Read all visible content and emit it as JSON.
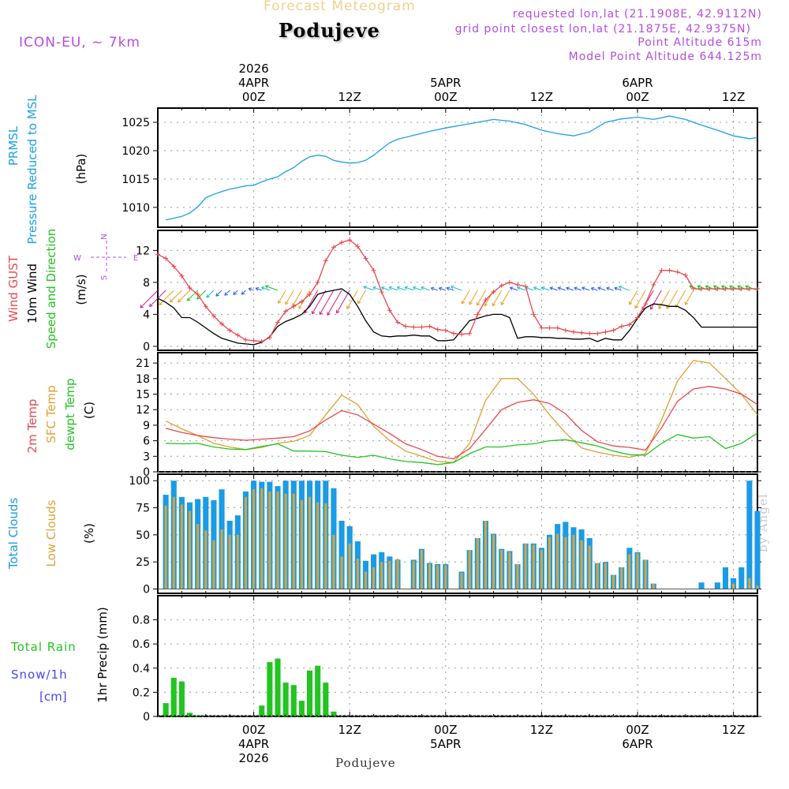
{
  "header": {
    "forecast_title": "Forecast Meteogram",
    "location": "Podujeve",
    "model": "ICON-EU, ~ 7km",
    "requested": "requested lon,lat (21.1908E, 42.9112N)",
    "grid_point": "grid point closest lon,lat (21.1875E, 42.9375N)",
    "point_altitude": "Point Altitude 615m",
    "model_altitude": "Model Point Altitude 644.125m",
    "footer_location": "Podujeve",
    "credit": "by Angel"
  },
  "colors": {
    "pressure": "#1aa0e6",
    "gust": "#e8484e",
    "wind": "#000000",
    "temp2m": "#e8484e",
    "sfc": "#e0a030",
    "dewpt": "#22c422",
    "total_cloud": "#1a9be6",
    "low_cloud": "#d9a53a",
    "rain": "#22c422",
    "snow": "#4848f0",
    "purple": "#b44ce0",
    "grid": "#999999"
  },
  "time_axis": {
    "top_years": [
      "2026"
    ],
    "top_dates": [
      "4APR",
      "5APR",
      "6APR"
    ],
    "top_hours": [
      "00Z",
      "12Z",
      "00Z",
      "12Z",
      "00Z",
      "12Z"
    ],
    "bottom_hours": [
      "00Z",
      "12Z",
      "00Z",
      "12Z",
      "00Z",
      "12Z"
    ],
    "bottom_dates": [
      "4APR",
      "5APR",
      "6APR"
    ],
    "bottom_years": [
      "2026"
    ]
  },
  "chart_data": [
    {
      "type": "line",
      "title": "PRMSL Pressure Reduced to MSL",
      "ylabel": "(hPa)",
      "label_lines": [
        "PRMSL",
        "Pressure Reduced to MSL"
      ],
      "unit": "(hPa)",
      "ylim": [
        1006.5,
        1027.5
      ],
      "yticks": [
        1010,
        1015,
        1020,
        1025
      ],
      "x_hours": [
        -12,
        63
      ],
      "series": [
        {
          "name": "Pressure",
          "x": [
            -11,
            -10,
            -9,
            -8,
            -7,
            -6,
            -5,
            -4,
            -3,
            -2,
            -1,
            0,
            1,
            2,
            3,
            4,
            5,
            6,
            7,
            8,
            9,
            10,
            11,
            12,
            13,
            14,
            15,
            16,
            17,
            18,
            20,
            22,
            24,
            26,
            28,
            30,
            32,
            34,
            36,
            38,
            40,
            42,
            44,
            46,
            48,
            50,
            52,
            54,
            56,
            58,
            60,
            62,
            63
          ],
          "values": [
            1007.8,
            1008.1,
            1008.4,
            1009.0,
            1010.1,
            1011.7,
            1012.3,
            1012.8,
            1013.2,
            1013.5,
            1013.8,
            1013.9,
            1014.5,
            1015.0,
            1015.4,
            1016.3,
            1017.0,
            1018.1,
            1018.9,
            1019.2,
            1019.0,
            1018.3,
            1018.0,
            1017.8,
            1017.9,
            1018.3,
            1019.2,
            1020.3,
            1021.4,
            1022.0,
            1022.7,
            1023.4,
            1024.0,
            1024.5,
            1025.0,
            1025.5,
            1025.2,
            1024.6,
            1023.6,
            1023.0,
            1022.6,
            1023.3,
            1025.0,
            1025.6,
            1025.9,
            1025.5,
            1026.1,
            1025.5,
            1024.5,
            1023.6,
            1022.6,
            1022.1,
            1022.3
          ]
        }
      ]
    },
    {
      "type": "line",
      "title": "Wind GUST / 10m Wind Speed and Direction",
      "ylabel": "(m/s)",
      "label_lines": [
        "Wind GUST",
        "10m Wind",
        "Speed and Direction"
      ],
      "unit": "(m/s)",
      "compass": {
        "n": "N",
        "s": "S",
        "w": "W",
        "e": "E"
      },
      "ylim": [
        -0.5,
        14.5
      ],
      "yticks": [
        0,
        4,
        8,
        12
      ],
      "x_hours": [
        -12,
        63
      ],
      "series": [
        {
          "name": "Wind GUST",
          "x": [
            -12,
            -11,
            -10,
            -9,
            -8,
            -7,
            -6,
            -5,
            -4,
            -3,
            -2,
            -1,
            0,
            1,
            2,
            3,
            4,
            5,
            6,
            7,
            8,
            9,
            10,
            11,
            12,
            13,
            14,
            15,
            16,
            17,
            18,
            19,
            20,
            21,
            22,
            23,
            24,
            25,
            26,
            27,
            28,
            29,
            30,
            31,
            32,
            33,
            34,
            35,
            36,
            37,
            38,
            39,
            40,
            41,
            42,
            43,
            44,
            45,
            46,
            47,
            48,
            49,
            50,
            51,
            52,
            53,
            54,
            55,
            56,
            57,
            58,
            59,
            60,
            61,
            62,
            63
          ],
          "values": [
            11.5,
            11.0,
            10.0,
            8.8,
            7.3,
            6.5,
            5.0,
            3.8,
            2.8,
            2.0,
            1.4,
            0.8,
            0.7,
            0.6,
            1.1,
            3.0,
            4.4,
            5.0,
            5.6,
            6.5,
            8.0,
            10.7,
            12.4,
            13.0,
            13.3,
            12.5,
            11.0,
            9.5,
            6.8,
            4.5,
            3.0,
            2.5,
            2.4,
            2.4,
            2.5,
            2.1,
            2.0,
            1.6,
            1.5,
            1.6,
            4.0,
            5.8,
            6.8,
            7.6,
            8.0,
            7.7,
            7.5,
            4.0,
            2.3,
            2.3,
            2.3,
            2.0,
            1.8,
            1.7,
            1.6,
            1.6,
            1.8,
            2.0,
            2.5,
            2.7,
            3.6,
            5.3,
            7.7,
            9.5,
            9.5,
            9.3,
            8.9,
            7.2,
            7.2,
            7.2,
            7.2,
            7.2,
            7.2,
            7.2,
            7.2,
            7.2
          ]
        },
        {
          "name": "10m Wind",
          "x": [
            -12,
            -11,
            -10,
            -9,
            -8,
            -7,
            -6,
            -5,
            -4,
            -3,
            -2,
            -1,
            0,
            1,
            2,
            3,
            4,
            5,
            6,
            7,
            8,
            9,
            10,
            11,
            12,
            13,
            14,
            15,
            16,
            17,
            18,
            19,
            20,
            21,
            22,
            23,
            24,
            25,
            26,
            27,
            28,
            29,
            30,
            31,
            32,
            33,
            34,
            35,
            36,
            37,
            38,
            39,
            40,
            41,
            42,
            43,
            44,
            45,
            46,
            47,
            48,
            49,
            50,
            51,
            52,
            53,
            54,
            55,
            56,
            57,
            58,
            59,
            60,
            61,
            62,
            63
          ],
          "values": [
            6.0,
            5.5,
            4.8,
            3.6,
            3.6,
            3.0,
            2.3,
            1.6,
            1.0,
            0.7,
            0.4,
            0.3,
            0.2,
            0.5,
            1.2,
            2.5,
            3.1,
            3.5,
            4.0,
            5.0,
            6.5,
            6.8,
            7.0,
            7.2,
            6.5,
            5.0,
            3.2,
            1.8,
            1.3,
            1.2,
            1.3,
            1.3,
            1.4,
            1.3,
            1.3,
            0.7,
            0.7,
            0.8,
            2.0,
            3.2,
            3.5,
            3.8,
            4.0,
            4.0,
            3.6,
            1.0,
            1.2,
            1.2,
            1.1,
            1.1,
            1.0,
            1.0,
            0.9,
            0.9,
            1.0,
            0.6,
            1.0,
            0.8,
            0.8,
            2.0,
            3.5,
            4.8,
            5.3,
            5.2,
            5.0,
            5.0,
            4.5,
            3.6,
            2.4,
            2.4,
            2.4,
            2.4,
            2.4,
            2.4,
            2.4,
            2.4
          ]
        }
      ]
    },
    {
      "type": "line",
      "title": "2m Temp / SFC Temp / dewpt Temp",
      "ylabel": "(C)",
      "label_lines": [
        "2m Temp",
        "SFC Temp",
        "dewpt Temp"
      ],
      "unit": "(C)",
      "ylim": [
        0,
        23
      ],
      "yticks": [
        0,
        3,
        6,
        9,
        12,
        15,
        18,
        21
      ],
      "x_hours": [
        -12,
        63
      ],
      "series": [
        {
          "name": "2m Temp",
          "x": [
            -11,
            -9,
            -7,
            -5,
            -3,
            -1,
            1,
            3,
            5,
            7,
            9,
            11,
            13,
            15,
            17,
            19,
            21,
            23,
            25,
            27,
            29,
            31,
            33,
            35,
            37,
            39,
            41,
            43,
            45,
            47,
            49,
            51,
            53,
            55,
            57,
            59,
            61,
            63
          ],
          "values": [
            8.4,
            7.6,
            7.0,
            6.6,
            6.3,
            6.1,
            6.3,
            6.5,
            6.8,
            7.9,
            10.0,
            11.8,
            11.0,
            9.2,
            7.4,
            5.4,
            4.3,
            3.0,
            2.5,
            4.5,
            8.2,
            12.0,
            13.4,
            13.9,
            13.2,
            11.2,
            8.0,
            5.8,
            5.0,
            4.7,
            4.2,
            8.5,
            13.6,
            16.0,
            16.5,
            16.0,
            15.0,
            13.0
          ]
        },
        {
          "name": "SFC Temp",
          "x": [
            -11,
            -9,
            -7,
            -5,
            -3,
            -1,
            1,
            3,
            5,
            7,
            9,
            11,
            13,
            15,
            17,
            19,
            21,
            23,
            25,
            27,
            29,
            31,
            33,
            35,
            37,
            39,
            41,
            43,
            45,
            47,
            49,
            51,
            53,
            55,
            57,
            59,
            61,
            63
          ],
          "values": [
            9.8,
            8.3,
            7.0,
            5.5,
            4.8,
            4.3,
            4.7,
            5.5,
            5.9,
            7.0,
            11.0,
            14.8,
            13.0,
            8.8,
            6.0,
            4.0,
            3.0,
            2.0,
            1.8,
            5.5,
            13.8,
            18.0,
            18.0,
            15.0,
            11.0,
            7.5,
            4.6,
            3.8,
            3.2,
            2.8,
            3.5,
            10.0,
            17.5,
            21.5,
            21.0,
            18.0,
            15.0,
            11.0
          ]
        },
        {
          "name": "dewpt Temp",
          "x": [
            -11,
            -9,
            -7,
            -5,
            -3,
            -1,
            1,
            3,
            5,
            7,
            9,
            11,
            13,
            15,
            17,
            19,
            21,
            23,
            25,
            27,
            29,
            31,
            33,
            35,
            37,
            39,
            41,
            43,
            45,
            47,
            49,
            51,
            53,
            55,
            57,
            59,
            61,
            63
          ],
          "values": [
            5.5,
            5.4,
            5.5,
            4.8,
            4.4,
            4.3,
            4.9,
            5.4,
            4.0,
            4.0,
            3.9,
            3.2,
            2.8,
            3.2,
            2.5,
            2.0,
            1.8,
            1.4,
            1.8,
            3.5,
            4.8,
            4.8,
            5.2,
            5.4,
            6.0,
            6.2,
            5.6,
            5.0,
            4.0,
            3.3,
            3.2,
            5.5,
            7.2,
            6.5,
            6.8,
            4.5,
            5.5,
            7.5
          ]
        }
      ]
    },
    {
      "type": "bar",
      "title": "Total Clouds / Low Clouds",
      "ylabel": "(%)",
      "label_lines": [
        "Total Clouds",
        "Low Clouds"
      ],
      "unit": "(%)",
      "ylim": [
        -4,
        106
      ],
      "yticks": [
        0,
        25,
        50,
        75,
        100
      ],
      "x_hours": [
        -12,
        63
      ],
      "x": [
        -11,
        -10,
        -9,
        -8,
        -7,
        -6,
        -5,
        -4,
        -3,
        -2,
        -1,
        0,
        1,
        2,
        3,
        4,
        5,
        6,
        7,
        8,
        9,
        10,
        11,
        12,
        13,
        14,
        15,
        16,
        17,
        18,
        19,
        20,
        21,
        22,
        23,
        24,
        25,
        26,
        27,
        28,
        29,
        30,
        31,
        32,
        33,
        34,
        35,
        36,
        37,
        38,
        39,
        40,
        41,
        42,
        43,
        44,
        45,
        46,
        47,
        48,
        49,
        50,
        51,
        52,
        53,
        54,
        55,
        56,
        57,
        58,
        59,
        60,
        61,
        62,
        63
      ],
      "series": [
        {
          "name": "Total Clouds",
          "values": [
            87,
            100,
            85,
            80,
            83,
            85,
            82,
            92,
            63,
            68,
            90,
            100,
            99,
            99,
            95,
            100,
            100,
            100,
            100,
            100,
            100,
            93,
            63,
            58,
            44,
            26,
            32,
            34,
            30,
            27,
            0,
            27,
            37,
            24,
            23,
            23,
            0,
            16,
            36,
            47,
            63,
            51,
            37,
            35,
            23,
            42,
            42,
            38,
            50,
            60,
            62,
            57,
            55,
            47,
            24,
            25,
            13,
            20,
            38,
            34,
            27,
            5,
            0,
            0,
            0,
            0,
            0,
            6,
            0,
            6,
            20,
            10,
            20,
            100,
            72
          ]
        },
        {
          "name": "Low Clouds",
          "values": [
            77,
            85,
            78,
            72,
            60,
            54,
            45,
            55,
            50,
            50,
            85,
            92,
            93,
            90,
            90,
            88,
            88,
            82,
            85,
            80,
            79,
            50,
            30,
            42,
            28,
            16,
            20,
            25,
            26,
            28,
            0,
            26,
            36,
            23,
            22,
            22,
            0,
            15,
            36,
            47,
            63,
            50,
            36,
            34,
            23,
            42,
            41,
            36,
            48,
            51,
            48,
            50,
            45,
            40,
            24,
            24,
            13,
            20,
            32,
            33,
            27,
            5,
            0,
            0,
            0,
            0,
            0,
            0,
            0,
            0,
            0,
            5,
            0,
            10,
            3
          ]
        }
      ]
    },
    {
      "type": "bar",
      "title": "Total Rain / Snow/1h",
      "ylabel": "1hr Precip (mm)",
      "label_lines": [
        "Total Rain",
        "Snow/1h",
        "[cm]"
      ],
      "unit": "1hr Precip (mm)",
      "ylim": [
        0,
        1.0
      ],
      "yticks": [
        0,
        0.2,
        0.4,
        0.6,
        0.8
      ],
      "x_hours": [
        -12,
        63
      ],
      "x": [
        -11,
        -10,
        -9,
        -8,
        -7,
        -6,
        -5,
        -4,
        -3,
        -2,
        -1,
        0,
        1,
        2,
        3,
        4,
        5,
        6,
        7,
        8,
        9,
        10,
        11
      ],
      "series": [
        {
          "name": "Total Rain",
          "values": [
            0.11,
            0.32,
            0.29,
            0.03,
            0.01,
            0,
            0,
            0,
            0,
            0,
            0,
            0,
            0.09,
            0.45,
            0.48,
            0.28,
            0.26,
            0.13,
            0.38,
            0.42,
            0.28,
            0.04,
            0
          ]
        },
        {
          "name": "Snow/1h",
          "values": [
            0,
            0,
            0,
            0,
            0,
            0,
            0,
            0,
            0,
            0,
            0,
            0,
            0,
            0,
            0,
            0,
            0,
            0,
            0,
            0,
            0,
            0,
            0
          ]
        }
      ]
    }
  ]
}
